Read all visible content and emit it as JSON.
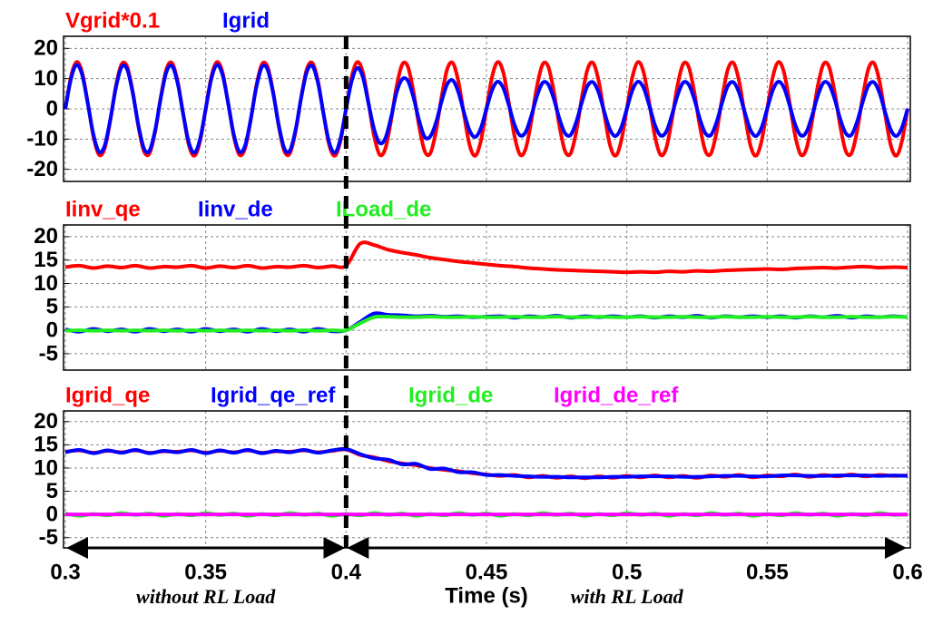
{
  "chart_data": [
    {
      "type": "line",
      "x": [
        0.3,
        0.302,
        0.304,
        0.306,
        0.308,
        0.31,
        0.312,
        0.314,
        0.316,
        0.318,
        0.32,
        0.322,
        0.324,
        0.326,
        0.328,
        0.33,
        0.332,
        0.334,
        0.336,
        0.338,
        0.34,
        0.342,
        0.344,
        0.346,
        0.348,
        0.35,
        0.352,
        0.354,
        0.356,
        0.358,
        0.36,
        0.362,
        0.364,
        0.366,
        0.368,
        0.37,
        0.372,
        0.374,
        0.376,
        0.378,
        0.38,
        0.382,
        0.384,
        0.386,
        0.388,
        0.39,
        0.392,
        0.394,
        0.396,
        0.398,
        0.4,
        0.402,
        0.404,
        0.406,
        0.408,
        0.41,
        0.412,
        0.414,
        0.416,
        0.418,
        0.42,
        0.422,
        0.424,
        0.426,
        0.428,
        0.43,
        0.432,
        0.434,
        0.436,
        0.438,
        0.44,
        0.442,
        0.444,
        0.446,
        0.448,
        0.45,
        0.452,
        0.454,
        0.456,
        0.458,
        0.46,
        0.462,
        0.464,
        0.466,
        0.468,
        0.47,
        0.472,
        0.474,
        0.476,
        0.478,
        0.48,
        0.482,
        0.484,
        0.486,
        0.488,
        0.49,
        0.492,
        0.494,
        0.496,
        0.498,
        0.5,
        0.502,
        0.504,
        0.506,
        0.508,
        0.51,
        0.512,
        0.514,
        0.516,
        0.518,
        0.52,
        0.522,
        0.524,
        0.526,
        0.528,
        0.53,
        0.532,
        0.534,
        0.536,
        0.538,
        0.54,
        0.542,
        0.544,
        0.546,
        0.548,
        0.55,
        0.552,
        0.554,
        0.556,
        0.558,
        0.56,
        0.562,
        0.564,
        0.566,
        0.568,
        0.57,
        0.572,
        0.574,
        0.576,
        0.578,
        0.58,
        0.582,
        0.584,
        0.586,
        0.588,
        0.59,
        0.592,
        0.594,
        0.596,
        0.598,
        0.6
      ],
      "series": [
        {
          "name": "Vgrid*0.1",
          "color": "#ff0000",
          "values": [
            0,
            10.6,
            15.5,
            12,
            1.9,
            -9.1,
            -15.2,
            -13.1,
            -3.9,
            7.5,
            14.7,
            14,
            5.7,
            -5.7,
            -14,
            -14.7,
            -7.5,
            3.9,
            13.1,
            15.2,
            9.1,
            -1.9,
            -12,
            -15.5,
            -10.6,
            0,
            10.6,
            15.5,
            12,
            1.9,
            -9.1,
            -15.2,
            -13.1,
            -3.9,
            7.5,
            14.7,
            14,
            5.7,
            -5.7,
            -14,
            -14.7,
            -7.5,
            3.9,
            13.1,
            15.2,
            9.1,
            -1.9,
            -12,
            -15.5,
            -10.6,
            0,
            10.6,
            15.5,
            12,
            1.9,
            -9.1,
            -15.2,
            -13.1,
            -3.9,
            7.5,
            14.7,
            14,
            5.7,
            -5.7,
            -14,
            -14.7,
            -7.5,
            3.9,
            13.1,
            15.2,
            9.1,
            -1.9,
            -12,
            -15.5,
            -10.6,
            0,
            10.6,
            15.5,
            12,
            1.9,
            -9.1,
            -15.2,
            -13.1,
            -3.9,
            7.5,
            14.7,
            14,
            5.7,
            -5.7,
            -14,
            -14.7,
            -7.5,
            3.9,
            13.1,
            15.2,
            9.1,
            -1.9,
            -12,
            -15.5,
            -10.6,
            0,
            10.6,
            15.5,
            12,
            1.9,
            -9.1,
            -15.2,
            -13.1,
            -3.9,
            7.5,
            14.7,
            14,
            5.7,
            -5.7,
            -14,
            -14.7,
            -7.5,
            3.9,
            13.1,
            15.2,
            9.1,
            -1.9,
            -12,
            -15.5,
            -10.6,
            0,
            10.6,
            15.5,
            12,
            1.9,
            -9.1,
            -15.2,
            -13.1,
            -3.9,
            7.5,
            14.7,
            14,
            5.7,
            -5.7,
            -14,
            -14.7,
            -7.5,
            3.9,
            13.1,
            15.2,
            9.1,
            -1.9,
            -12,
            -15.5,
            -10.6,
            0
          ]
        },
        {
          "name": "Igrid",
          "color": "#0000ff",
          "values": [
            0,
            9.9,
            14.5,
            11.2,
            1.8,
            -8.5,
            -14.2,
            -12.2,
            -3.6,
            7,
            13.8,
            13.1,
            5.3,
            -5.3,
            -13.1,
            -13.8,
            -7,
            3.6,
            12.2,
            14.2,
            8.5,
            -1.8,
            -11.2,
            -14.5,
            -9.9,
            0,
            9.9,
            14.5,
            11.2,
            1.8,
            -8.5,
            -14.2,
            -12.2,
            -3.6,
            7,
            13.8,
            13.1,
            5.3,
            -5.3,
            -13.1,
            -13.8,
            -7,
            3.6,
            12.2,
            14.2,
            8.5,
            -1.8,
            -11.2,
            -14.5,
            -9.9,
            0,
            9.2,
            13.5,
            10.4,
            1.7,
            -6.8,
            -11.3,
            -9.7,
            -2.9,
            5.5,
            9.8,
            9.3,
            3.8,
            -3.8,
            -9.3,
            -9.1,
            -4.6,
            2.4,
            8.1,
            9.4,
            5.5,
            -1.2,
            -7.2,
            -9.3,
            -6.4,
            0,
            6.2,
            9,
            6.9,
            1.1,
            -5.3,
            -8.8,
            -7.6,
            -2.2,
            4.3,
            8.6,
            8.1,
            3.3,
            -3.3,
            -8.1,
            -8.6,
            -4.3,
            2.2,
            7.6,
            8.8,
            5.3,
            -1.1,
            -6.9,
            -9,
            -6.2,
            0,
            6.2,
            9,
            6.9,
            1.1,
            -5.3,
            -8.8,
            -7.6,
            -2.2,
            4.3,
            8.6,
            8.1,
            3.3,
            -3.3,
            -8.1,
            -8.6,
            -4.3,
            2.2,
            7.6,
            8.8,
            5.3,
            -1.1,
            -6.9,
            -9,
            -6.2,
            0,
            6.2,
            9,
            6.9,
            1.1,
            -5.3,
            -8.8,
            -7.6,
            -2.2,
            4.3,
            8.6,
            8.1,
            3.3,
            -3.3,
            -8.1,
            -8.6,
            -4.3,
            2.2,
            7.6,
            8.8,
            5.3,
            -1.1,
            -6.9,
            -9,
            -6.2,
            0
          ]
        }
      ],
      "xlim": [
        0.3,
        0.6
      ],
      "xticks": [
        0.3,
        0.35,
        0.4,
        0.45,
        0.5,
        0.55,
        0.6
      ],
      "ylim": [
        -24,
        24
      ],
      "yticks": [
        20,
        10,
        0,
        -10,
        -20
      ],
      "grid": true
    },
    {
      "type": "line",
      "x": [
        0.3,
        0.305,
        0.31,
        0.315,
        0.32,
        0.325,
        0.33,
        0.335,
        0.34,
        0.345,
        0.35,
        0.355,
        0.36,
        0.365,
        0.37,
        0.375,
        0.38,
        0.385,
        0.39,
        0.395,
        0.4,
        0.405,
        0.41,
        0.415,
        0.42,
        0.425,
        0.43,
        0.435,
        0.44,
        0.445,
        0.45,
        0.455,
        0.46,
        0.465,
        0.47,
        0.475,
        0.48,
        0.485,
        0.49,
        0.495,
        0.5,
        0.505,
        0.51,
        0.515,
        0.52,
        0.525,
        0.53,
        0.535,
        0.54,
        0.545,
        0.55,
        0.555,
        0.56,
        0.565,
        0.57,
        0.575,
        0.58,
        0.585,
        0.59,
        0.595,
        0.6
      ],
      "series": [
        {
          "name": "Iinv_qe",
          "color": "#ff0000",
          "values": [
            13.5,
            13.8,
            13.3,
            13.7,
            13.4,
            13.8,
            13.3,
            13.6,
            13.5,
            13.8,
            13.3,
            13.7,
            13.4,
            13.8,
            13.3,
            13.6,
            13.5,
            13.8,
            13.4,
            13.7,
            13.8,
            18.5,
            18.2,
            17.2,
            16.6,
            16.1,
            15.5,
            15.1,
            14.7,
            14.4,
            14.1,
            13.8,
            13.6,
            13.3,
            13.1,
            12.9,
            12.8,
            12.7,
            12.6,
            12.5,
            12.4,
            12.5,
            12.4,
            12.6,
            12.5,
            12.7,
            12.6,
            12.8,
            12.9,
            13,
            13.1,
            13,
            13.2,
            13.3,
            13.4,
            13.3,
            13.5,
            13.6,
            13.4,
            13.5,
            13.4
          ]
        },
        {
          "name": "Iinv_de",
          "color": "#0000ff",
          "values": [
            0.2,
            -0.3,
            0.3,
            -0.2,
            0.2,
            -0.3,
            0.3,
            -0.2,
            0.2,
            -0.3,
            0.3,
            -0.2,
            0.2,
            -0.3,
            0.3,
            -0.2,
            0.2,
            -0.3,
            0.3,
            -0.2,
            0,
            1.8,
            3.6,
            3.3,
            3.2,
            3,
            3.1,
            2.9,
            3,
            2.8,
            2.9,
            3,
            2.7,
            3,
            2.8,
            3.1,
            2.7,
            3,
            2.8,
            3,
            2.8,
            3,
            2.7,
            3,
            2.8,
            3.1,
            2.7,
            3,
            2.8,
            3,
            2.8,
            3,
            2.7,
            3,
            2.8,
            3.1,
            2.7,
            3,
            2.8,
            3,
            2.8
          ]
        },
        {
          "name": "ILoad_de",
          "color": "#22ee22",
          "values": [
            -0.1,
            0,
            -0.1,
            0,
            -0.1,
            0,
            -0.1,
            0,
            -0.1,
            0,
            -0.1,
            0,
            -0.1,
            0,
            -0.1,
            0,
            -0.1,
            0,
            -0.1,
            0,
            0,
            1.5,
            2.8,
            2.9,
            2.8,
            2.8,
            2.9,
            2.8,
            2.8,
            2.9,
            2.8,
            2.8,
            2.9,
            2.8,
            2.8,
            2.9,
            2.8,
            2.8,
            2.9,
            2.8,
            2.8,
            2.9,
            2.8,
            2.8,
            2.9,
            2.8,
            2.8,
            2.9,
            2.8,
            2.8,
            2.9,
            2.8,
            2.8,
            2.9,
            2.8,
            2.8,
            2.9,
            2.8,
            2.8,
            2.9,
            2.8
          ]
        }
      ],
      "xlim": [
        0.3,
        0.6
      ],
      "xticks": [
        0.3,
        0.35,
        0.4,
        0.45,
        0.5,
        0.55,
        0.6
      ],
      "ylim": [
        -8.5,
        22.5
      ],
      "yticks": [
        20,
        15,
        10,
        5,
        0,
        -5
      ],
      "grid": true
    },
    {
      "type": "line",
      "x": [
        0.3,
        0.305,
        0.31,
        0.315,
        0.32,
        0.325,
        0.33,
        0.335,
        0.34,
        0.345,
        0.35,
        0.355,
        0.36,
        0.365,
        0.37,
        0.375,
        0.38,
        0.385,
        0.39,
        0.395,
        0.4,
        0.405,
        0.41,
        0.415,
        0.42,
        0.425,
        0.43,
        0.435,
        0.44,
        0.445,
        0.45,
        0.455,
        0.46,
        0.465,
        0.47,
        0.475,
        0.48,
        0.485,
        0.49,
        0.495,
        0.5,
        0.505,
        0.51,
        0.515,
        0.52,
        0.525,
        0.53,
        0.535,
        0.54,
        0.545,
        0.55,
        0.555,
        0.56,
        0.565,
        0.57,
        0.575,
        0.58,
        0.585,
        0.59,
        0.595,
        0.6
      ],
      "series": [
        {
          "name": "Igrid_qe",
          "color": "#ff0000",
          "values": [
            13.5,
            13.8,
            13.3,
            13.7,
            13.4,
            13.8,
            13.3,
            13.6,
            13.5,
            13.8,
            13.3,
            13.7,
            13.4,
            13.8,
            13.3,
            13.6,
            13.5,
            13.8,
            13.4,
            13.7,
            14,
            12.8,
            12.3,
            11.5,
            11,
            10.6,
            10,
            9.6,
            9.3,
            8.9,
            8.6,
            8.3,
            8.5,
            8,
            8.3,
            7.9,
            8.2,
            7.8,
            8.2,
            7.9,
            8.3,
            8,
            8.4,
            8,
            8.3,
            7.9,
            8.4,
            8.1,
            8.5,
            8,
            8.4,
            8.2,
            8.6,
            8.1,
            8.5,
            8.2,
            8.6,
            8.2,
            8.5,
            8.3,
            8.4
          ]
        },
        {
          "name": "Igrid_qe_ref",
          "color": "#0000ff",
          "values": [
            13.4,
            13.9,
            13.2,
            13.8,
            13.3,
            13.9,
            13.2,
            13.7,
            13.4,
            13.9,
            13.2,
            13.8,
            13.3,
            13.9,
            13.2,
            13.7,
            13.4,
            13.9,
            13.3,
            13.8,
            14.1,
            13,
            12.1,
            11.8,
            10.8,
            10.9,
            9.8,
            9.9,
            9.1,
            9.1,
            8.5,
            8.5,
            8.3,
            8.2,
            8.1,
            8.1,
            8,
            8,
            8,
            8.1,
            8.1,
            8.2,
            8.2,
            8.2,
            8.1,
            8.1,
            8.2,
            8.3,
            8.3,
            8.2,
            8.2,
            8.4,
            8.4,
            8.3,
            8.3,
            8.4,
            8.4,
            8.4,
            8.3,
            8.4,
            8.3
          ]
        },
        {
          "name": "Igrid_de",
          "color": "#22ee22",
          "values": [
            0.2,
            -0.3,
            0.1,
            -0.2,
            0.3,
            -0.1,
            0.2,
            -0.3,
            0.1,
            -0.2,
            0.3,
            -0.1,
            0.2,
            -0.3,
            0.1,
            -0.2,
            0.3,
            -0.1,
            0.2,
            -0.3,
            0.1,
            -0.2,
            0.3,
            -0.1,
            0.2,
            -0.3,
            0.1,
            -0.2,
            0.3,
            -0.1,
            0.2,
            -0.3,
            0.1,
            -0.2,
            0.3,
            -0.1,
            0.2,
            -0.3,
            0.1,
            -0.2,
            0.3,
            -0.1,
            0.2,
            -0.3,
            0.1,
            -0.2,
            0.3,
            -0.1,
            0.2,
            -0.3,
            0.1,
            -0.2,
            0.3,
            -0.1,
            0.2,
            -0.3,
            0.1,
            -0.2,
            0.3,
            -0.1,
            0
          ]
        },
        {
          "name": "Igrid_de_ref",
          "color": "#ff00ff",
          "values": [
            0,
            0,
            0,
            0,
            0,
            0,
            0,
            0,
            0,
            0,
            0,
            0,
            0,
            0,
            0,
            0,
            0,
            0,
            0,
            0,
            0,
            0,
            0,
            0,
            0,
            0,
            0,
            0,
            0,
            0,
            0,
            0,
            0,
            0,
            0,
            0,
            0,
            0,
            0,
            0,
            0,
            0,
            0,
            0,
            0,
            0,
            0,
            0,
            0,
            0,
            0,
            0,
            0,
            0,
            0,
            0,
            0,
            0,
            0,
            0,
            0
          ]
        }
      ],
      "xlim": [
        0.3,
        0.6
      ],
      "xticks": [
        0.3,
        0.35,
        0.4,
        0.45,
        0.5,
        0.55,
        0.6
      ],
      "ylim": [
        -7.2,
        22.3
      ],
      "yticks": [
        20,
        15,
        10,
        5,
        0,
        -5
      ],
      "grid": true,
      "xlabel": "Time (s)"
    }
  ],
  "annotations": {
    "switch_time": 0.4,
    "before": "without RL Load",
    "after": "with RL Load"
  }
}
